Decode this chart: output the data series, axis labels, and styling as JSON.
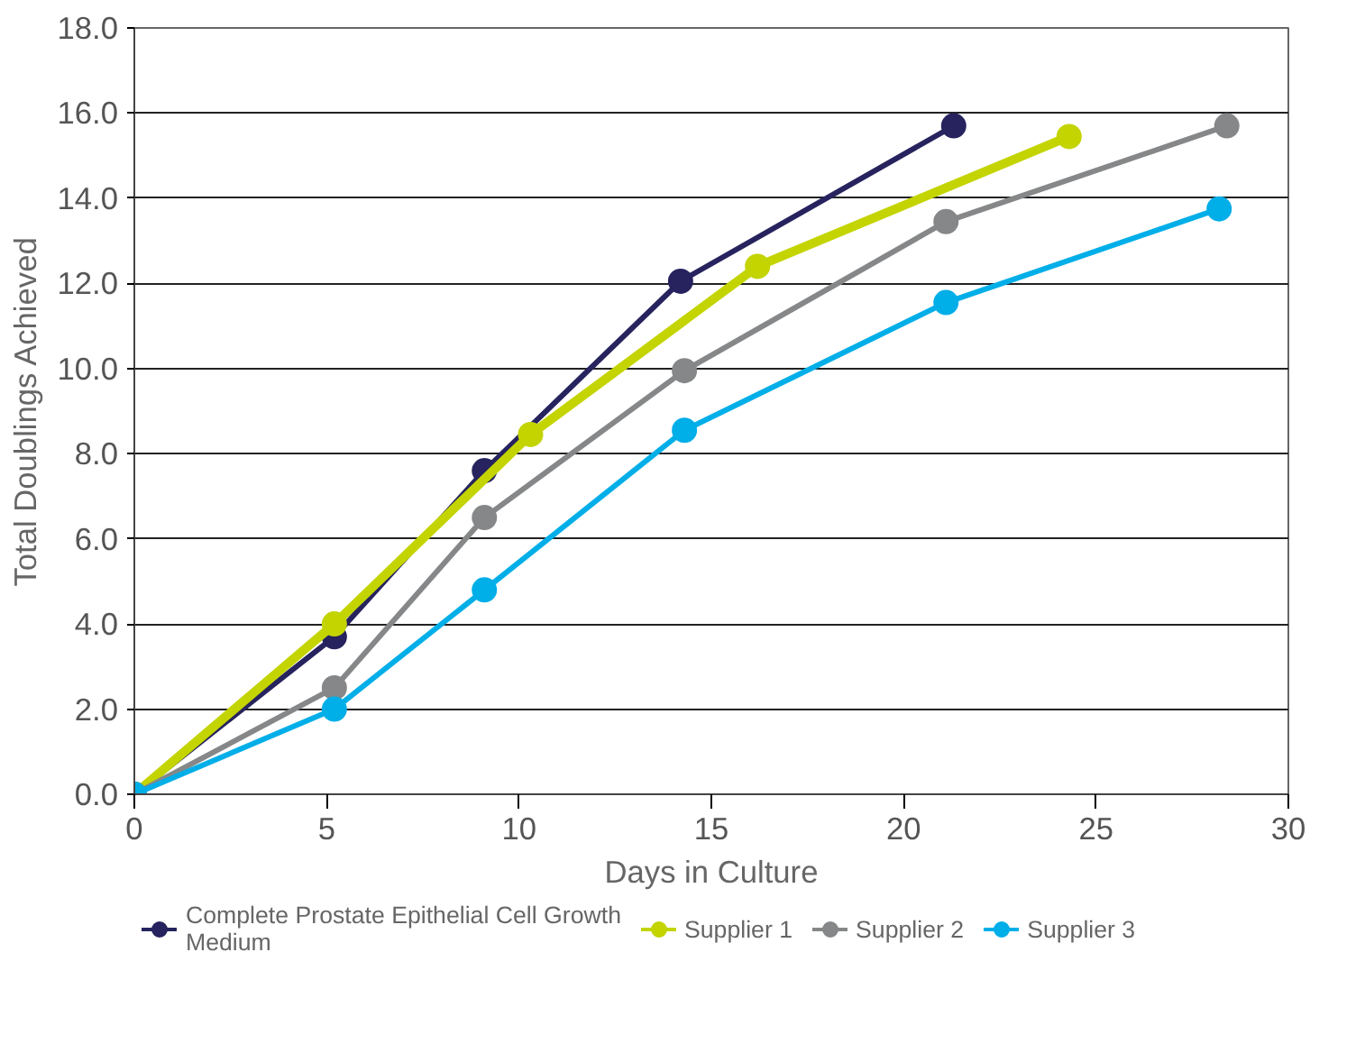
{
  "chart_data": {
    "type": "line",
    "xlabel": "Days in Culture",
    "ylabel": "Total Doublings Achieved",
    "xlim": [
      0,
      30
    ],
    "xticks": [
      0,
      5,
      10,
      15,
      20,
      25,
      30
    ],
    "ylim": [
      0,
      18
    ],
    "yticks": [
      {
        "value": 0,
        "label": "0.0"
      },
      {
        "value": 2,
        "label": "2.0"
      },
      {
        "value": 4,
        "label": "4.0"
      },
      {
        "value": 6,
        "label": "6.0"
      },
      {
        "value": 8,
        "label": "8.0"
      },
      {
        "value": 10,
        "label": "10.0"
      },
      {
        "value": 12,
        "label": "12.0"
      },
      {
        "value": 14,
        "label": "14.0"
      },
      {
        "value": 16,
        "label": "16.0"
      },
      {
        "value": 18,
        "label": "18.0"
      }
    ],
    "grid": "y",
    "legend": "bottom",
    "marker": "circle",
    "series": [
      {
        "name": "Complete Prostate Epithelial Cell Growth Medium",
        "color": "#26235e",
        "x": [
          0,
          5.2,
          9.1,
          14.2,
          21.3
        ],
        "values": [
          0,
          3.7,
          7.6,
          12.05,
          15.7
        ]
      },
      {
        "name": "Supplier 1",
        "color": "#c3d400",
        "x": [
          0,
          5.2,
          10.3,
          16.2,
          24.3
        ],
        "values": [
          0,
          4.0,
          8.45,
          12.4,
          15.45
        ]
      },
      {
        "name": "Supplier 2",
        "color": "#858788",
        "x": [
          0,
          5.2,
          9.1,
          14.3,
          21.1,
          28.4
        ],
        "values": [
          0,
          2.5,
          6.5,
          9.95,
          13.45,
          15.7
        ]
      },
      {
        "name": "Supplier 3",
        "color": "#00aee8",
        "x": [
          0,
          5.2,
          9.1,
          14.3,
          21.1,
          28.2
        ],
        "values": [
          0,
          2.0,
          4.8,
          8.55,
          11.55,
          13.75
        ]
      }
    ]
  }
}
